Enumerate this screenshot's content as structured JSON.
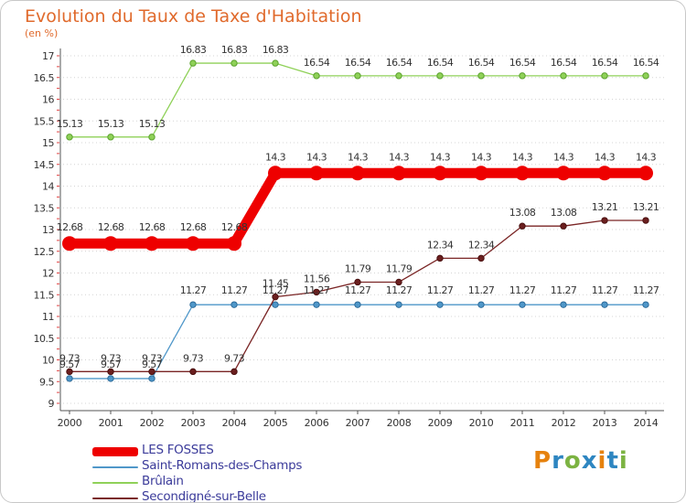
{
  "title": "Evolution du Taux de Taxe d'Habitation",
  "subtitle": "(en %)",
  "logo_text": "Proxiti",
  "logo_colors": [
    "#e6820e",
    "#2e86c1",
    "#7cb342",
    "#2e86c1",
    "#e6820e",
    "#2e86c1",
    "#7cb342"
  ],
  "chart_data": {
    "type": "line",
    "title": "Evolution du Taux de Taxe d'Habitation",
    "ylabel": "(en %)",
    "xlabel": "",
    "ylim": [
      9,
      17
    ],
    "yticks": [
      "9",
      "9.5",
      "10",
      "10.5",
      "11",
      "11.5",
      "12",
      "12.5",
      "13",
      "13.5",
      "14",
      "14.5",
      "15",
      "15.5",
      "16",
      "16.5",
      "17"
    ],
    "x": [
      "2000",
      "2001",
      "2002",
      "2003",
      "2004",
      "2005",
      "2006",
      "2007",
      "2008",
      "2009",
      "2010",
      "2011",
      "2012",
      "2013",
      "2014"
    ],
    "grid": "horizontal dotted",
    "legend_position": "bottom-left",
    "series": [
      {
        "name": "LES FOSSES",
        "color": "#ee0000",
        "values": [
          12.68,
          12.68,
          12.68,
          12.68,
          12.68,
          14.3,
          14.3,
          14.3,
          14.3,
          14.3,
          14.3,
          14.3,
          14.3,
          14.3,
          14.3
        ],
        "labels": [
          "12.68",
          "12.68",
          "12.68",
          "12.68",
          "12.68",
          "14.3",
          "14.3",
          "14.3",
          "14.3",
          "14.3",
          "14.3",
          "14.3",
          "14.3",
          "14.3",
          "14.3"
        ]
      },
      {
        "name": "Saint-Romans-des-Champs",
        "color": "#4f97c9",
        "values": [
          9.57,
          9.57,
          9.57,
          11.27,
          11.27,
          11.27,
          11.27,
          11.27,
          11.27,
          11.27,
          11.27,
          11.27,
          11.27,
          11.27,
          11.27
        ],
        "labels": [
          "9.57",
          "9.57",
          "9.57",
          "11.27",
          "11.27",
          "11.27",
          "11.27",
          "11.27",
          "11.27",
          "11.27",
          "11.27",
          "11.27",
          "11.27",
          "11.27",
          "11.27"
        ]
      },
      {
        "name": "Brûlain",
        "color": "#8fd158",
        "values": [
          15.13,
          15.13,
          15.13,
          16.83,
          16.83,
          16.83,
          16.54,
          16.54,
          16.54,
          16.54,
          16.54,
          16.54,
          16.54,
          16.54,
          16.54
        ],
        "labels": [
          "15.13",
          "15.13",
          "15.13",
          "16.83",
          "16.83",
          "16.83",
          "16.54",
          "16.54",
          "16.54",
          "16.54",
          "16.54",
          "16.54",
          "16.54",
          "16.54",
          "16.54"
        ]
      },
      {
        "name": "Secondigné-sur-Belle",
        "color": "#7a2525",
        "values": [
          9.73,
          9.73,
          9.73,
          9.73,
          9.73,
          11.45,
          11.56,
          11.79,
          11.79,
          12.34,
          12.34,
          13.08,
          13.08,
          13.21,
          13.21
        ],
        "labels": [
          "9.73",
          "9.73",
          "9.73",
          "9.73",
          "9.73",
          "11.45",
          "11.56",
          "11.79",
          "11.79",
          "12.34",
          "12.34",
          "13.08",
          "13.08",
          "13.21",
          "13.21"
        ]
      }
    ]
  }
}
